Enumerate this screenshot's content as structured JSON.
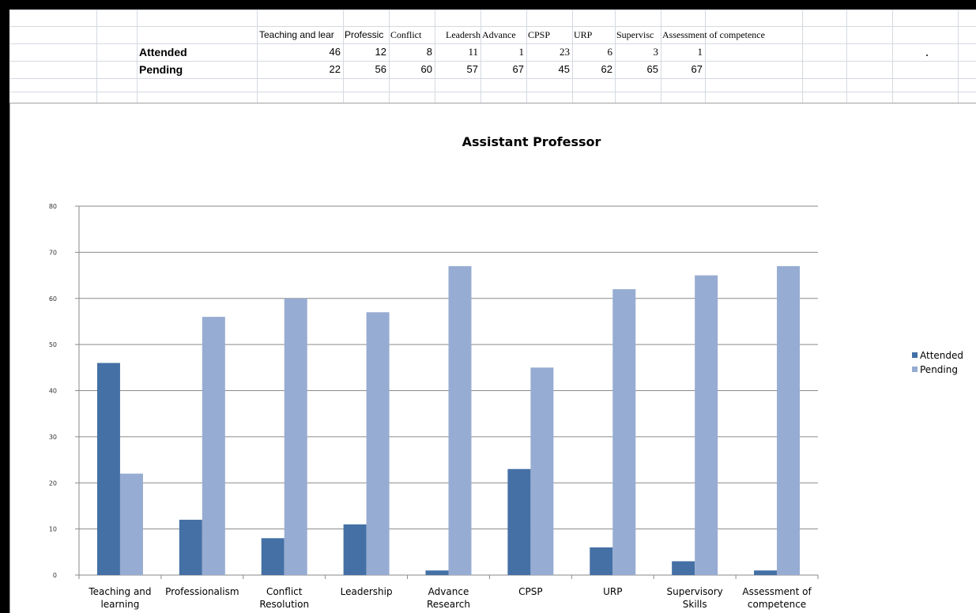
{
  "sheet": {
    "headers": [
      "Teaching and lear",
      "Professic",
      "Conflict",
      "Leadersh",
      "Advance",
      "CPSP",
      "URP",
      "Supervisc",
      "Assessment of competence"
    ],
    "rows": [
      {
        "label": "Attended",
        "values": [
          "46",
          "12",
          "8",
          "11",
          "1",
          "23",
          "6",
          "3",
          "1"
        ]
      },
      {
        "label": "Pending",
        "values": [
          "22",
          "56",
          "60",
          "57",
          "67",
          "45",
          "62",
          "65",
          "67"
        ]
      }
    ]
  },
  "chart_data": {
    "type": "bar",
    "title": "Assistant Professor",
    "categories": [
      [
        "Teaching and",
        "learning"
      ],
      [
        "Professionalism"
      ],
      [
        "Conflict",
        "Resolution"
      ],
      [
        "Leadership"
      ],
      [
        "Advance",
        "Research"
      ],
      [
        "CPSP"
      ],
      [
        "URP"
      ],
      [
        "Supervisory",
        "Skills"
      ],
      [
        "Assessment of",
        "competence"
      ]
    ],
    "series": [
      {
        "name": "Attended",
        "color": "#4470a5",
        "values": [
          46,
          12,
          8,
          11,
          1,
          23,
          6,
          3,
          1
        ]
      },
      {
        "name": "Pending",
        "color": "#97acd2",
        "values": [
          22,
          56,
          60,
          57,
          67,
          45,
          62,
          65,
          67
        ]
      }
    ],
    "ylim": [
      0,
      80
    ],
    "yticks": [
      "0",
      "10",
      "20",
      "30",
      "40",
      "50",
      "60",
      "70",
      "80"
    ],
    "grid": true,
    "legend": "right"
  }
}
